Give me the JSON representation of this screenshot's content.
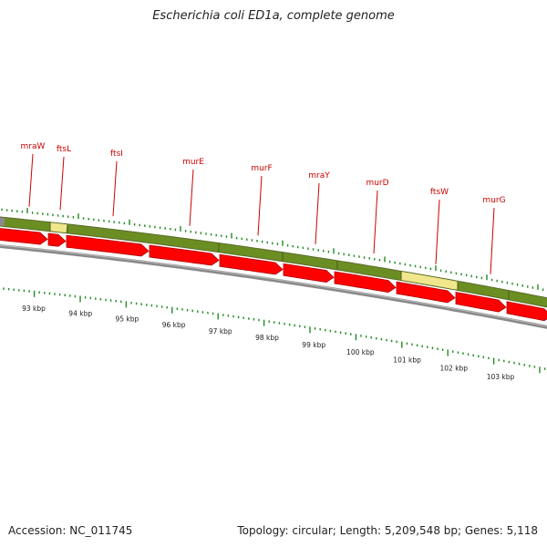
{
  "title": "Escherichia coli ED1a, complete genome",
  "footer": {
    "accession": "Accession: NC_011745",
    "summary": "Topology: circular; Length: 5,209,548 bp; Genes: 5,118"
  },
  "colors": {
    "feature_band": "#6b8e23",
    "feature_band_alt": "#f0e68c",
    "gene_arrow": "#ff0000",
    "gene_label": "#cc0000",
    "tick": "#228b22",
    "backbone": "#888888"
  },
  "gene_labels": [
    "mraW",
    "ftsL",
    "ftsI",
    "murE",
    "murF",
    "mraY",
    "murD",
    "ftsW",
    "murG"
  ],
  "scale_labels": [
    "93 kbp",
    "94 kbp",
    "95 kbp",
    "96 kbp",
    "97 kbp",
    "98 kbp",
    "99 kbp",
    "100 kbp",
    "101 kbp",
    "102 kbp",
    "103 kbp"
  ]
}
